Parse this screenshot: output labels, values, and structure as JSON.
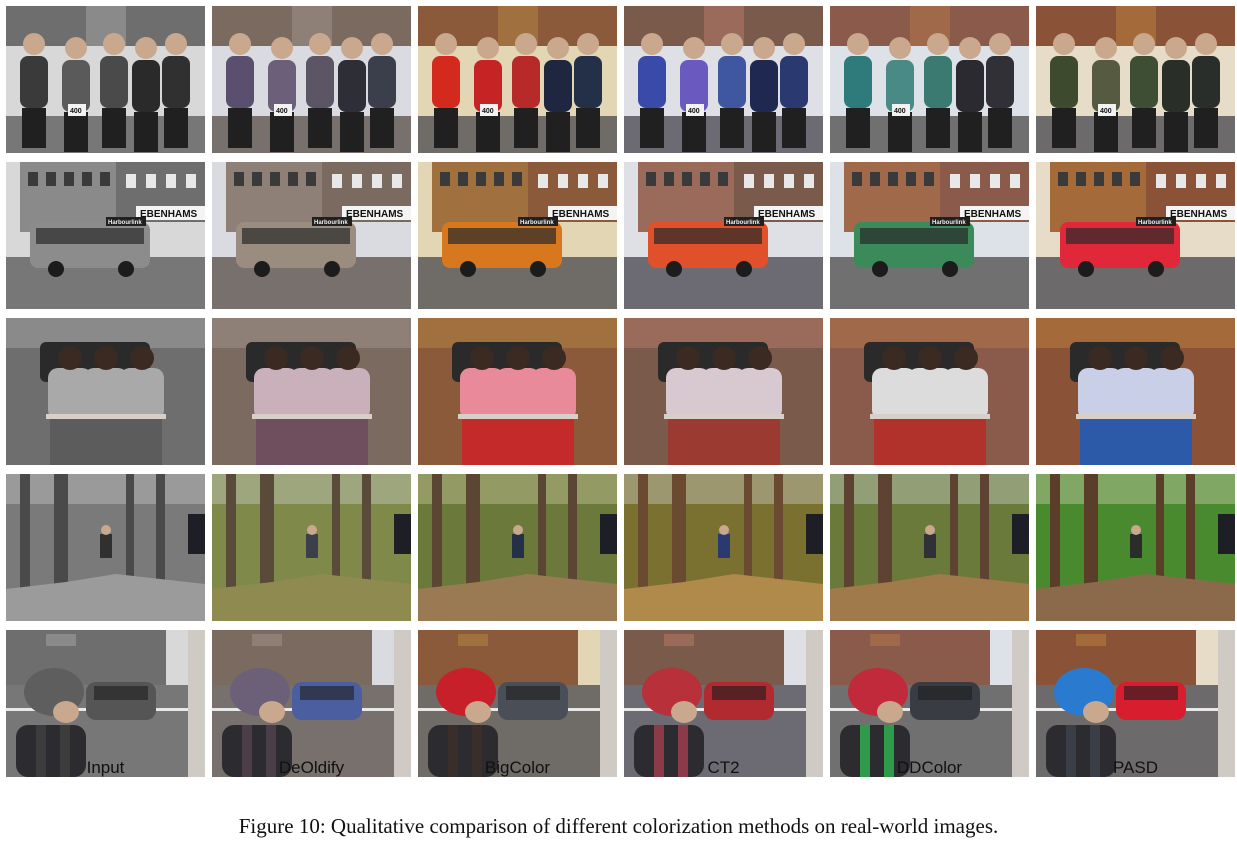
{
  "figure": {
    "caption": "Figure 10: Qualitative comparison of different colorization methods on real-world images."
  },
  "methods": [
    "Input",
    "DeOldify",
    "BigColor",
    "CT2",
    "DDColor",
    "PASD"
  ],
  "scenes": [
    "runners-group",
    "city-bus",
    "children-street",
    "forest-trail-runner",
    "street-helmet-man"
  ],
  "signage": {
    "bus_store_sign": "EBENHAMS",
    "bus_destination": "Harbourlink",
    "bib_number": "400"
  },
  "palettes": [
    {
      "name": "Input",
      "sky": "#d8d8d8",
      "building": "#6e6e6e",
      "building2": "#8a8a8a",
      "ground": "#777777",
      "jacket": [
        "#3a3a3a",
        "#5a5a5a",
        "#4a4a4a",
        "#2a2a2a",
        "#303030"
      ],
      "bus": "#8c8c8c",
      "shirt": "#a9a9a9",
      "pants": "#5c5c5c",
      "foliage": "#7a7a7a",
      "trunk": "#4a4a4a",
      "path": "#9b9b9b",
      "helmet": "#5e5e5e",
      "car": "#555555",
      "vest": "#3c3c3c"
    },
    {
      "name": "DeOldify",
      "sky": "#d9dbe0",
      "building": "#7a6a60",
      "building2": "#8e8077",
      "ground": "#77706c",
      "jacket": [
        "#5a4f6e",
        "#6b5f7a",
        "#5b5565",
        "#2e2e38",
        "#3b3f4c"
      ],
      "bus": "#9a8d80",
      "shirt": "#c9b0bb",
      "pants": "#6f4f5e",
      "foliage": "#7f8a4a",
      "trunk": "#5a4a3a",
      "path": "#8f8a50",
      "helmet": "#6b6077",
      "car": "#4b5fa0",
      "vest": "#4a3e48"
    },
    {
      "name": "BigColor",
      "sky": "#e2d6b4",
      "building": "#8a5a3a",
      "building2": "#a0703f",
      "ground": "#6f6b66",
      "jacket": [
        "#d42a1e",
        "#c62424",
        "#b82a2a",
        "#1e2640",
        "#243048"
      ],
      "bus": "#d8781e",
      "shirt": "#e88a9a",
      "pants": "#c42a2a",
      "foliage": "#6b7a3a",
      "trunk": "#5a4632",
      "path": "#9a7a52",
      "helmet": "#c8202a",
      "car": "#4a4e56",
      "vest": "#3a2e2a"
    },
    {
      "name": "CT2",
      "sky": "#dfe0e6",
      "building": "#7a5a4a",
      "building2": "#9a6a5a",
      "ground": "#6c6a72",
      "jacket": [
        "#3a4aa8",
        "#6a5ac0",
        "#3f56a0",
        "#1e2850",
        "#2a3a70"
      ],
      "bus": "#e0502a",
      "shirt": "#d8c8cf",
      "pants": "#9a3a30",
      "foliage": "#7a7030",
      "trunk": "#6a4a30",
      "path": "#b08a4a",
      "helmet": "#b8303a",
      "car": "#b02a30",
      "vest": "#8a3a48"
    },
    {
      "name": "DDColor",
      "sky": "#dde2e8",
      "building": "#8a5a4a",
      "building2": "#a06a4a",
      "ground": "#707070",
      "jacket": [
        "#2f7a7a",
        "#4a8a86",
        "#3a7a70",
        "#2a2a30",
        "#303036"
      ],
      "bus": "#3a8a5a",
      "shirt": "#dcdcdc",
      "pants": "#b0322a",
      "foliage": "#6a7a3a",
      "trunk": "#5e4232",
      "path": "#a07a4a",
      "helmet": "#c02a3a",
      "car": "#3a3c44",
      "vest": "#2e9a4a"
    },
    {
      "name": "PASD",
      "sky": "#e6dcc8",
      "building": "#8a5236",
      "building2": "#a56a3a",
      "ground": "#6c6a6a",
      "jacket": [
        "#3e4a2e",
        "#565a40",
        "#3e4e34",
        "#2a2e28",
        "#2a2e2a"
      ],
      "bus": "#e0283a",
      "shirt": "#c8cfe6",
      "pants": "#2c5aa8",
      "foliage": "#4a8a2e",
      "trunk": "#5a3e2a",
      "path": "#8a6a4a",
      "helmet": "#2a7ad0",
      "car": "#d81e2e",
      "vest": "#3a3e46"
    }
  ]
}
